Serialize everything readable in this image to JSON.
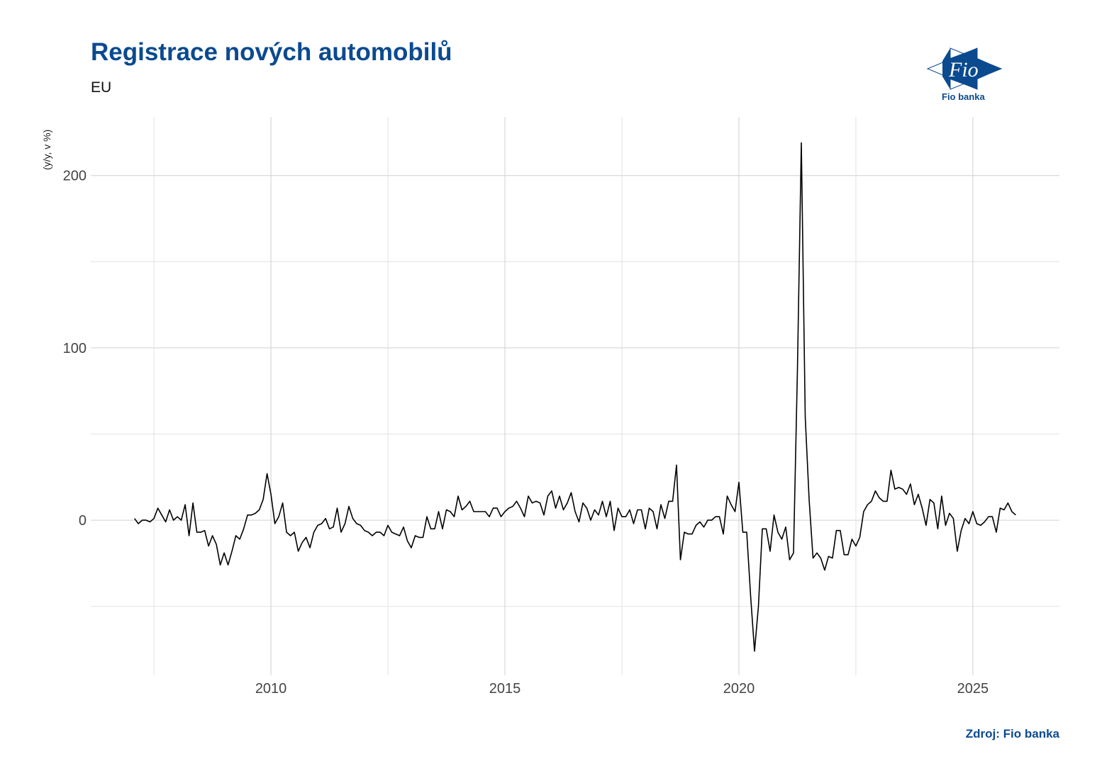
{
  "header": {
    "title": "Registrace nových automobilů",
    "subtitle": "EU"
  },
  "logo": {
    "text": "Fio",
    "caption": "Fio banka",
    "color": "#0b4a8f"
  },
  "source": "Zdroj: Fio banka",
  "chart_data": {
    "type": "line",
    "title": "Registrace nových automobilů",
    "subtitle": "EU",
    "ylabel": "(y/y, v %)",
    "xlabel": "",
    "x_ticks": [
      2010,
      2015,
      2020,
      2025
    ],
    "y_ticks": [
      0,
      100,
      200
    ],
    "xlim": [
      2006.15,
      2026.85
    ],
    "ylim": [
      -90,
      234
    ],
    "grid": true,
    "line_color": "#000000",
    "frequency": "monthly",
    "values_by_year": {
      "2007": [
        1,
        -2,
        0,
        0,
        -1,
        1,
        7,
        3,
        -1,
        6,
        0,
        2
      ],
      "2008": [
        0,
        9,
        -9,
        10,
        -7,
        -7,
        -6,
        -15,
        -9,
        -14,
        -26,
        -19
      ],
      "2009": [
        -26,
        -18,
        -9,
        -11,
        -5,
        3,
        3,
        4,
        6,
        12,
        27,
        15
      ],
      "2010": [
        -2,
        2,
        10,
        -7,
        -9,
        -7,
        -18,
        -13,
        -10,
        -16,
        -7,
        -3
      ],
      "2011": [
        -2,
        1,
        -5,
        -4,
        7,
        -7,
        -2,
        8,
        1,
        -2,
        -3,
        -6
      ],
      "2012": [
        -7,
        -9,
        -7,
        -7,
        -9,
        -3,
        -7,
        -8,
        -9,
        -4,
        -12,
        -16
      ],
      "2013": [
        -9,
        -10,
        -10,
        2,
        -5,
        -5,
        5,
        -5,
        6,
        5,
        2,
        14
      ],
      "2014": [
        6,
        8,
        11,
        5,
        5,
        5,
        5,
        2,
        7,
        7,
        2,
        5
      ],
      "2015": [
        7,
        8,
        11,
        7,
        2,
        14,
        10,
        11,
        10,
        3,
        14,
        17
      ],
      "2016": [
        7,
        14,
        6,
        10,
        16,
        5,
        -1,
        10,
        7,
        0,
        6,
        3
      ],
      "2017": [
        11,
        2,
        11,
        -6,
        7,
        2,
        2,
        6,
        -2,
        6,
        6,
        -5
      ],
      "2018": [
        7,
        5,
        -5,
        9,
        1,
        11,
        11,
        32,
        -23,
        -7,
        -8,
        -8
      ],
      "2019": [
        -3,
        -1,
        -4,
        0,
        0,
        2,
        2,
        -8,
        14,
        9,
        5,
        22
      ],
      "2020": [
        -7,
        -7,
        -44,
        -76,
        -50,
        -5,
        -5,
        -18,
        3,
        -7,
        -11,
        -4
      ],
      "2021": [
        -23,
        -19,
        87,
        219,
        60,
        12,
        -22,
        -19,
        -22,
        -29,
        -21,
        -22
      ],
      "2022": [
        -6,
        -6,
        -20,
        -20,
        -11,
        -15,
        -10,
        5,
        9,
        11,
        17,
        13
      ],
      "2023": [
        11,
        11,
        29,
        18,
        19,
        18,
        15,
        21,
        9,
        15,
        7,
        -3
      ],
      "2024": [
        12,
        10,
        -5,
        14,
        -3,
        4,
        1,
        -18,
        -6,
        1,
        -2,
        5
      ],
      "2025": [
        -2,
        -3,
        -1,
        2,
        2,
        -7,
        7,
        6,
        10,
        5,
        3
      ]
    }
  }
}
